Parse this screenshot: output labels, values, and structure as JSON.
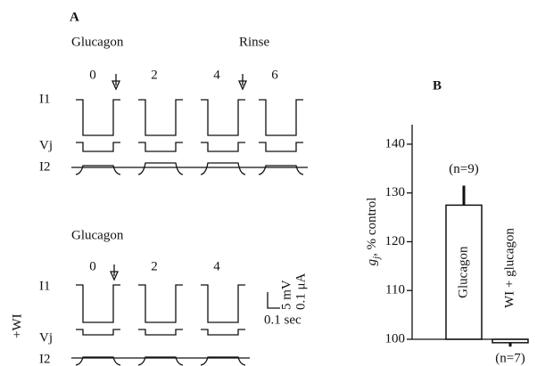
{
  "panel_a": {
    "letter": "A",
    "top": {
      "condition": "Glucagon",
      "rinse": "Rinse",
      "times": [
        "0",
        "2",
        "4",
        "6"
      ],
      "i1": "I1",
      "vj": "Vj",
      "i2": "I2"
    },
    "bottom": {
      "condition": "Glucagon",
      "times": [
        "0",
        "2",
        "4"
      ],
      "i1": "I1",
      "vj": "Vj",
      "i2": "I2",
      "treatment": "+WI"
    },
    "scale": {
      "voltage": "5 mV",
      "current": "0.1 μA",
      "time": "0.1 sec"
    }
  },
  "chart_data": {
    "type": "bar",
    "panel": "B",
    "ylabel": {
      "symbol": "g",
      "subscript": "j",
      "text": ", % control"
    },
    "categories": [
      "Glucagon",
      "WI + glucagon"
    ],
    "values": [
      127.5,
      99.3
    ],
    "errors": [
      4,
      0.8
    ],
    "n_labels": [
      "(n=9)",
      "(n=7)"
    ],
    "color": "#ffffff",
    "ylim": [
      100,
      144
    ],
    "yticks": [
      100,
      110,
      120,
      130,
      140
    ]
  }
}
